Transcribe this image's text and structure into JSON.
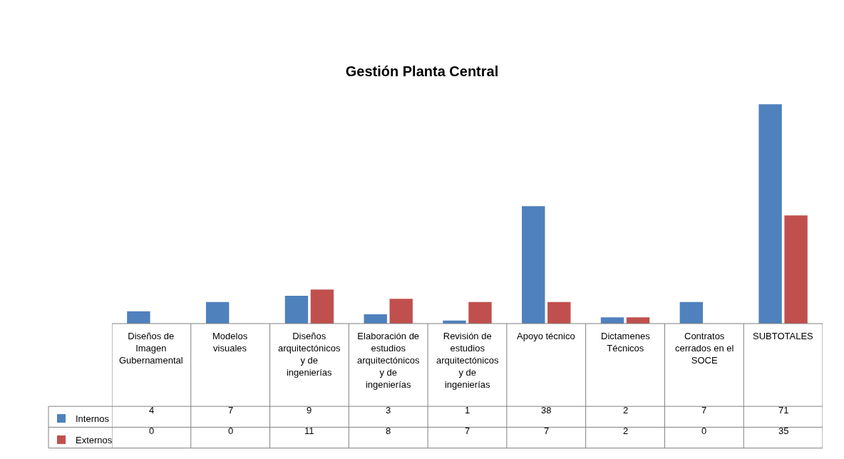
{
  "chart_data": {
    "type": "bar",
    "title": "Gestión Planta Central",
    "categories": [
      "Diseños de Imagen Gubernamental",
      "Modelos visuales",
      "Diseños arquitectónicos y de ingenierías",
      "Elaboración de estudios arquitectónicos y de ingenierías",
      "Revisión de estudios arquitectónicos y de ingenierías",
      "Apoyo técnico",
      "Dictamenes Técnicos",
      "Contratos cerrados en el SOCE",
      "SUBTOTALES"
    ],
    "series": [
      {
        "name": "Internos",
        "color": "#4f81bd",
        "values": [
          4,
          7,
          9,
          3,
          1,
          38,
          2,
          7,
          71
        ]
      },
      {
        "name": "Externos",
        "color": "#c0504d",
        "values": [
          0,
          0,
          11,
          8,
          7,
          7,
          2,
          0,
          35
        ]
      }
    ],
    "data_labels": true,
    "legend": "bottom left"
  }
}
